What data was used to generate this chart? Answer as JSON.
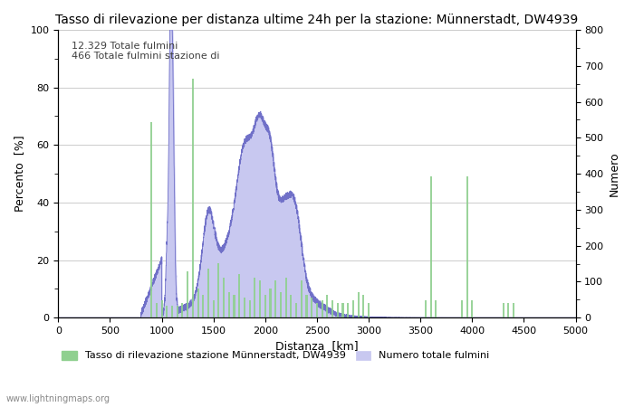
{
  "title": "Tasso di rilevazione per distanza ultime 24h per la stazione: Münnerstadt, DW4939",
  "xlabel": "Distanza  [km]",
  "ylabel_left": "Percento  [%]",
  "ylabel_right": "Numero",
  "annotation_line1": "12.329 Totale fulmini",
  "annotation_line2": "466 Totale fulmini stazione di",
  "legend_green": "Tasso di rilevazione stazione Münnerstadt, DW4939",
  "legend_blue": "Numero totale fulmini",
  "watermark": "www.lightningmaps.org",
  "xlim": [
    0,
    5000
  ],
  "ylim_left": [
    0,
    100
  ],
  "ylim_right": [
    0,
    800
  ],
  "xticks": [
    0,
    500,
    1000,
    1500,
    2000,
    2500,
    3000,
    3500,
    4000,
    4500,
    5000
  ],
  "yticks_left": [
    0,
    20,
    40,
    60,
    80,
    100
  ],
  "yticks_right": [
    0,
    100,
    200,
    300,
    400,
    500,
    600,
    700,
    800
  ],
  "bar_color": "#90d090",
  "fill_color": "#c8c8f0",
  "line_color": "#7070c8",
  "background_color": "#ffffff",
  "grid_color": "#cccccc",
  "title_fontsize": 10,
  "label_fontsize": 9,
  "tick_fontsize": 8
}
